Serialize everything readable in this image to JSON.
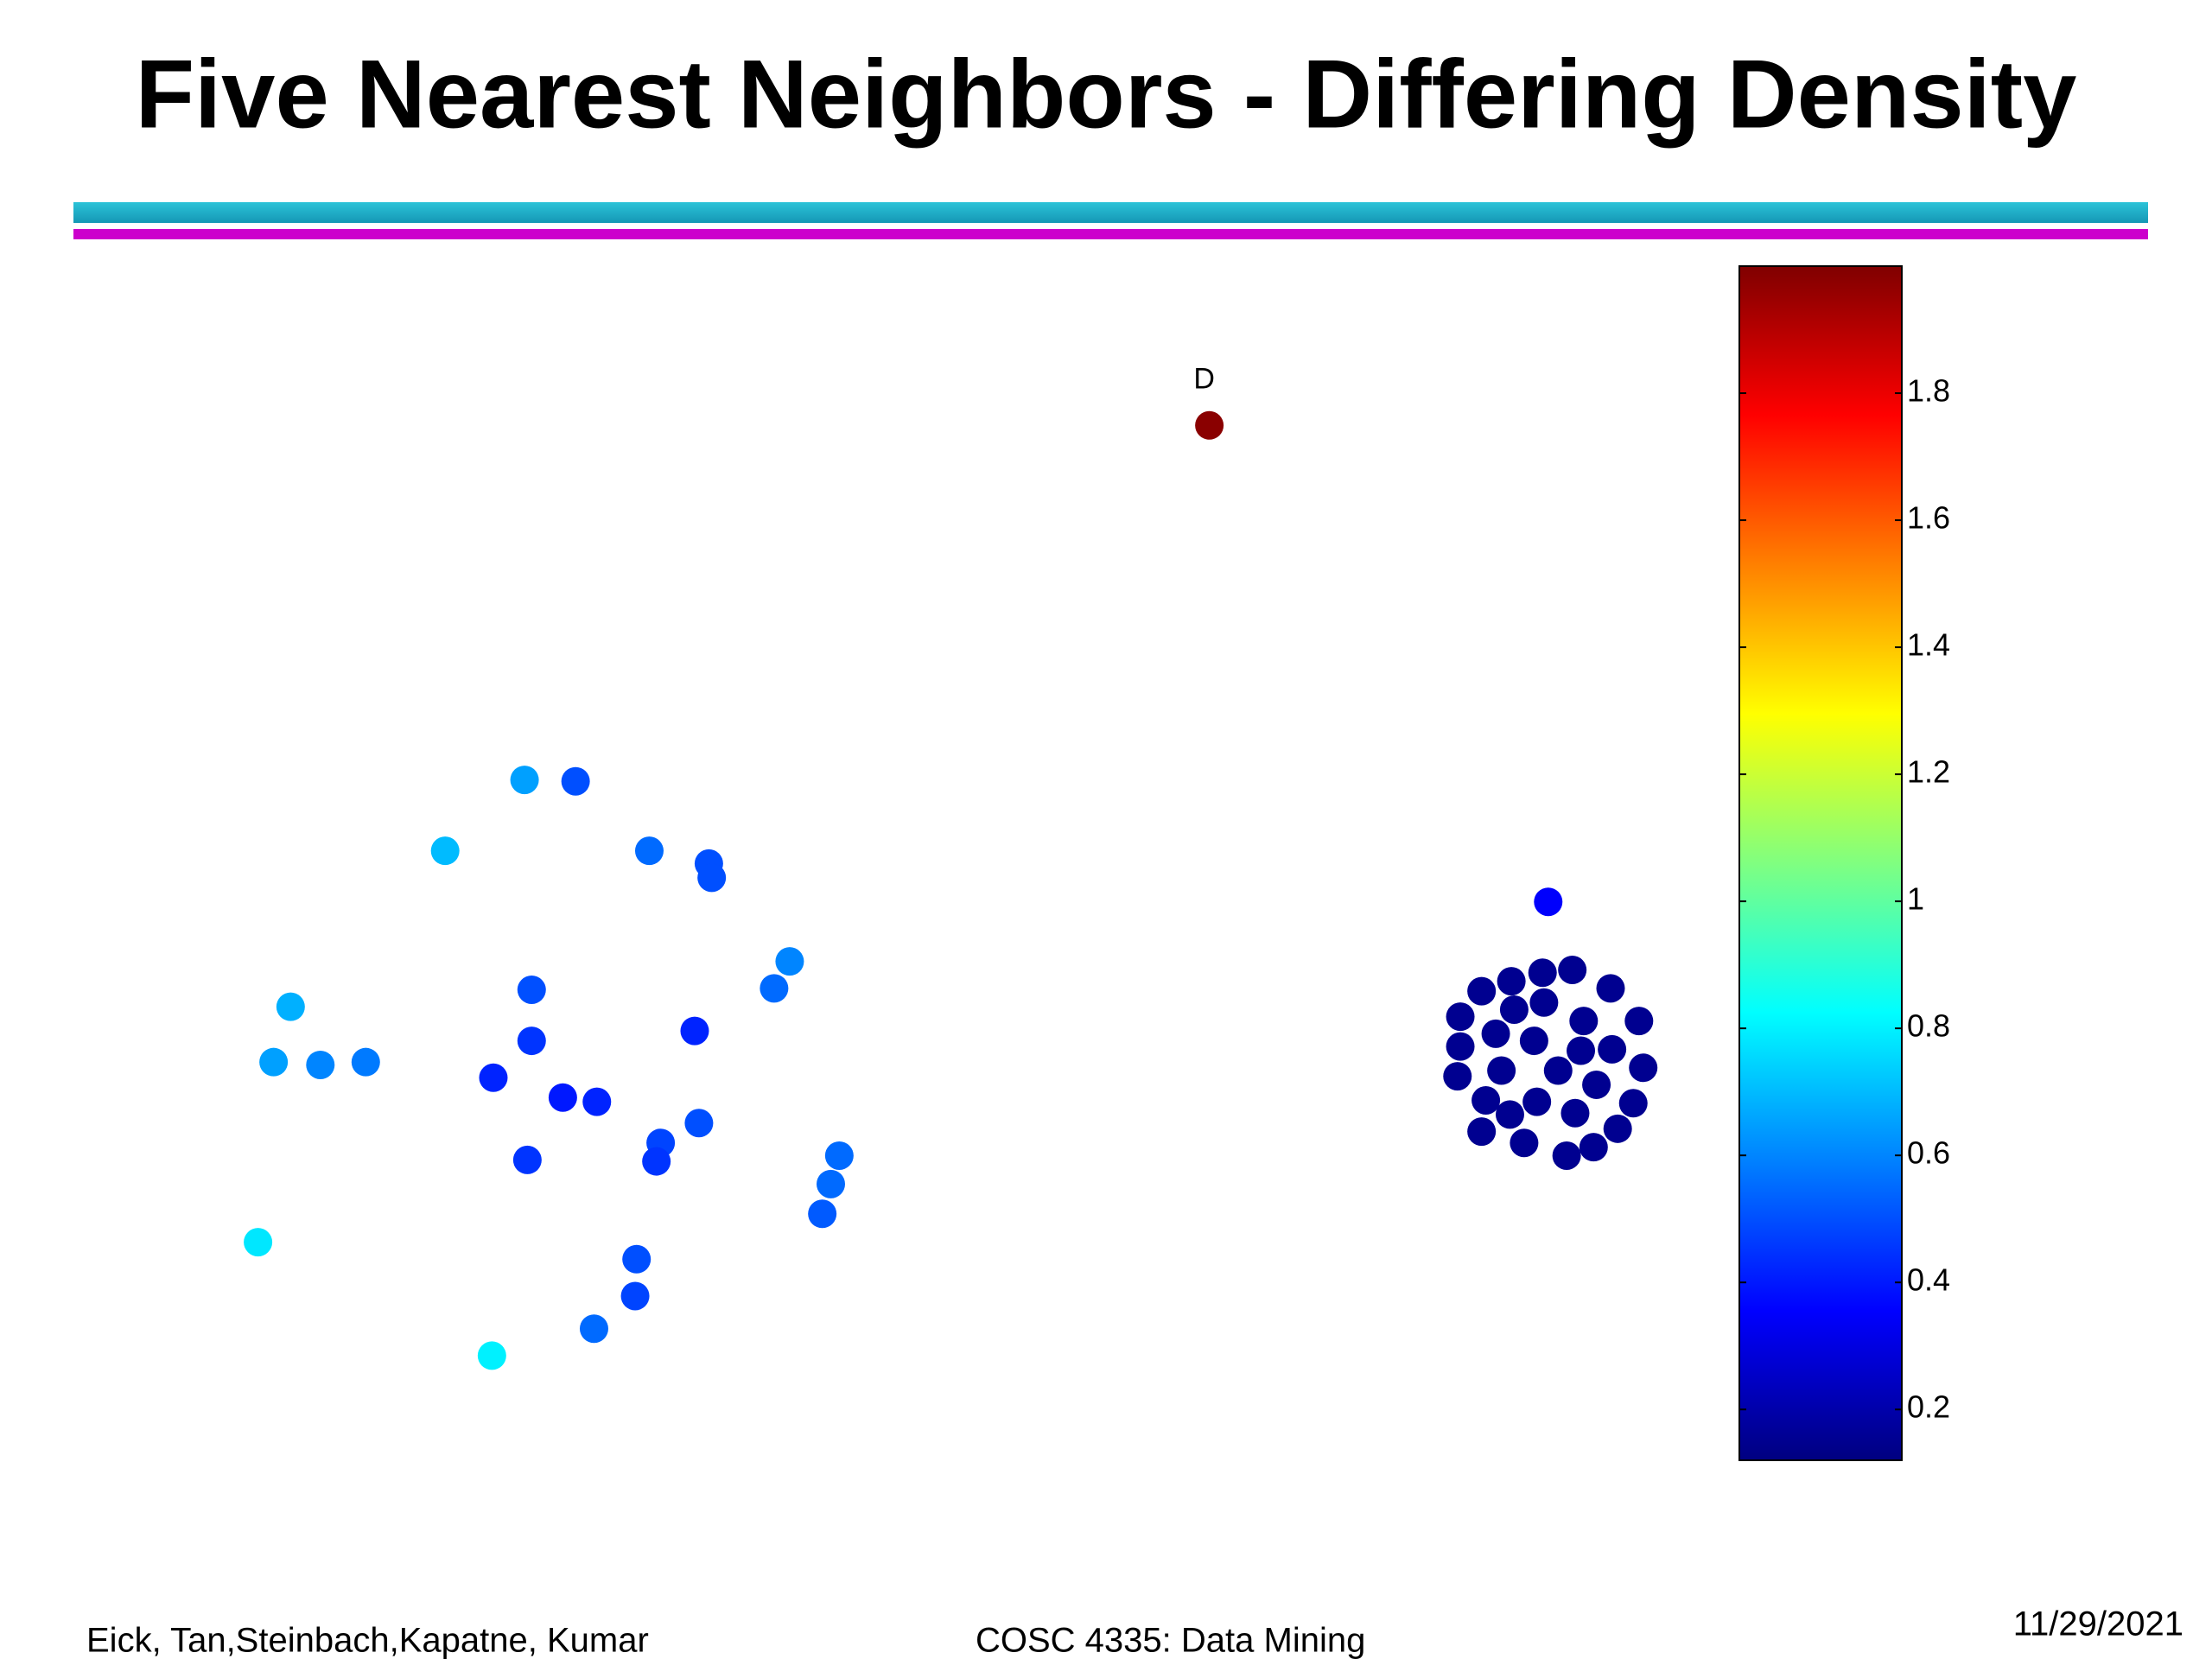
{
  "chart_data": {
    "type": "scatter",
    "title": "Five Nearest Neighbors - Differing Density",
    "x": [
      3.7,
      4.06,
      3.14,
      4.58,
      5.0,
      5.02,
      5.57,
      5.46,
      2.05,
      3.75,
      4.9,
      3.75,
      1.93,
      2.26,
      2.58,
      3.48,
      3.97,
      4.21,
      4.93,
      4.66,
      4.63,
      3.72,
      5.92,
      5.86,
      5.8,
      1.82,
      4.49,
      4.48,
      4.19,
      3.47,
      8.53,
      10.92,
      10.45,
      10.66,
      10.88,
      11.09,
      11.36,
      10.3,
      10.68,
      10.89,
      11.17,
      11.56,
      10.3,
      10.55,
      10.82,
      11.15,
      11.37,
      10.28,
      10.59,
      10.99,
      11.59,
      10.48,
      10.84,
      11.26,
      10.65,
      11.11,
      11.52,
      10.45,
      10.75,
      11.05,
      11.24,
      11.41
    ],
    "y": [
      6.2,
      6.19,
      5.7,
      5.7,
      5.61,
      5.51,
      4.92,
      4.73,
      4.6,
      4.72,
      4.43,
      4.36,
      4.21,
      4.19,
      4.21,
      4.1,
      3.96,
      3.93,
      3.78,
      3.64,
      3.51,
      3.52,
      3.55,
      3.35,
      3.14,
      2.94,
      2.82,
      2.56,
      2.33,
      2.14,
      8.7,
      5.34,
      4.71,
      4.78,
      4.84,
      4.86,
      4.73,
      4.53,
      4.58,
      4.63,
      4.5,
      4.5,
      4.32,
      4.41,
      4.36,
      4.29,
      4.3,
      4.11,
      4.15,
      4.15,
      4.17,
      3.94,
      3.93,
      4.05,
      3.84,
      3.85,
      3.92,
      3.72,
      3.64,
      3.55,
      3.61,
      3.74
    ],
    "values": [
      0.65,
      0.5,
      0.7,
      0.55,
      0.5,
      0.5,
      0.6,
      0.55,
      0.68,
      0.5,
      0.42,
      0.45,
      0.65,
      0.6,
      0.58,
      0.42,
      0.4,
      0.42,
      0.5,
      0.48,
      0.45,
      0.45,
      0.55,
      0.55,
      0.52,
      0.78,
      0.5,
      0.48,
      0.55,
      0.8,
      1.98,
      0.35,
      0.15,
      0.15,
      0.15,
      0.15,
      0.15,
      0.15,
      0.15,
      0.15,
      0.15,
      0.15,
      0.15,
      0.15,
      0.15,
      0.15,
      0.15,
      0.15,
      0.15,
      0.15,
      0.15,
      0.15,
      0.15,
      0.15,
      0.15,
      0.15,
      0.15,
      0.15,
      0.15,
      0.15,
      0.15,
      0.15
    ],
    "xlim": [
      0.5,
      12
    ],
    "ylim": [
      1,
      9.5
    ],
    "colormap": "jet",
    "clim": [
      0.12,
      2.0
    ],
    "cticks": [
      0.2,
      0.4,
      0.6,
      0.8,
      1,
      1.2,
      1.4,
      1.6,
      1.8
    ],
    "annotations": [
      {
        "text": "D",
        "point": 30
      }
    ]
  },
  "footer": {
    "left": "Eick, Tan,Steinbach,Kapatne, Kumar",
    "center": "COSC 4335: Data Mining",
    "right": "11/29/2021"
  }
}
